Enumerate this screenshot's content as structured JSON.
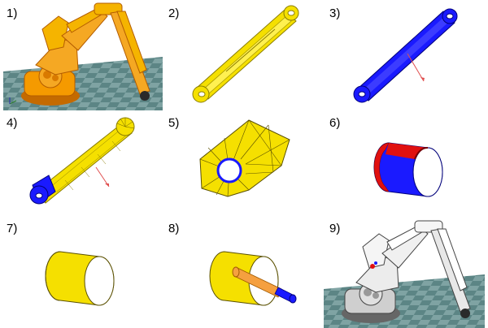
{
  "panels": [
    {
      "label": "1)"
    },
    {
      "label": "2)"
    },
    {
      "label": "3)"
    },
    {
      "label": "4)"
    },
    {
      "label": "5)"
    },
    {
      "label": "6)"
    },
    {
      "label": "7)"
    },
    {
      "label": "8)"
    },
    {
      "label": "9)"
    }
  ],
  "colors": {
    "yellow": "#f5e000",
    "yellow_dark": "#b9a800",
    "blue": "#1a1aff",
    "red": "#e01010",
    "orange": "#f59a00",
    "orange_dark": "#c46a00",
    "floor_light": "#7fa3a3",
    "floor_dark": "#4f7474",
    "rod_orange": "#f5a040"
  }
}
